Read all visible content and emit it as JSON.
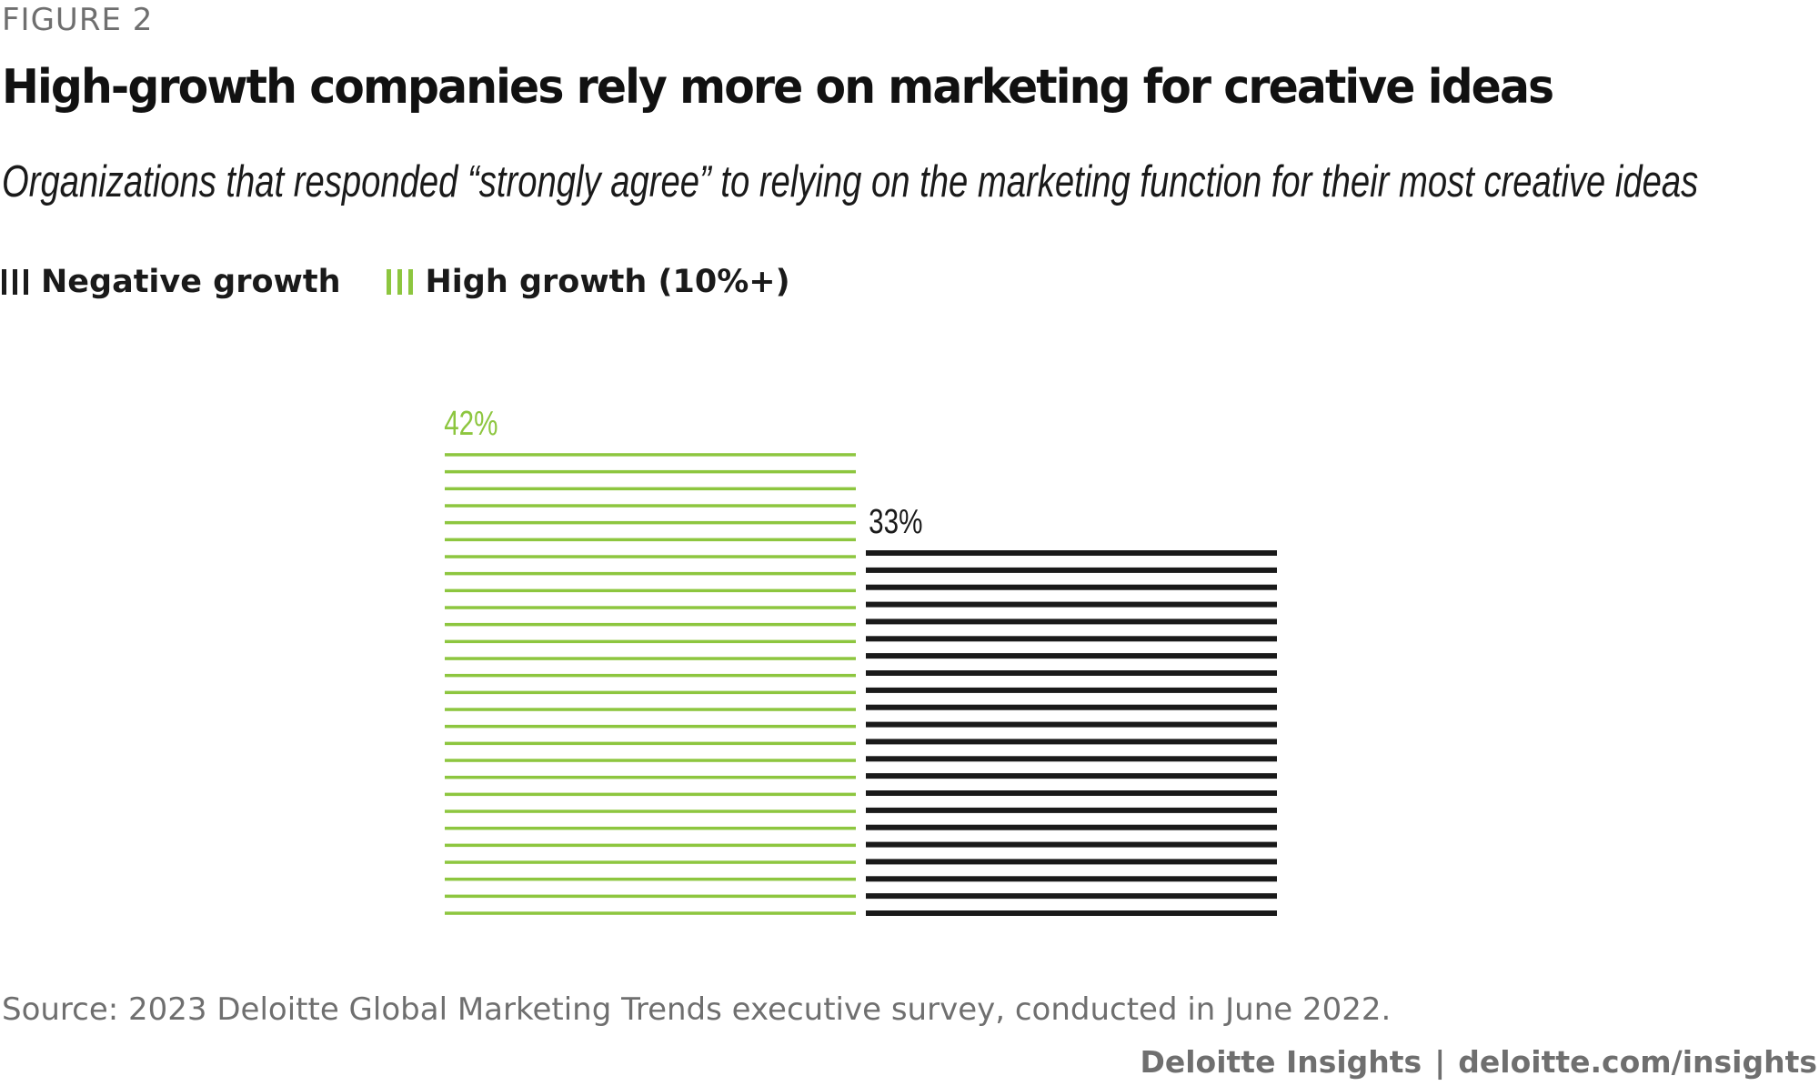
{
  "header": {
    "figure_label": "FIGURE 2",
    "title": "High-growth companies rely more on marketing for creative ideas",
    "subtitle": "Organizations that responded “strongly agree” to relying on the marketing function for their most creative ideas"
  },
  "legend": {
    "items": [
      {
        "label": "Negative growth",
        "color": "#1a1a1a"
      },
      {
        "label": "High growth (10%+)",
        "color": "#8dc63f"
      }
    ]
  },
  "chart_data": {
    "type": "bar",
    "categories": [
      "High growth (10%+)",
      "Negative growth"
    ],
    "values": [
      42,
      33
    ],
    "data_labels": [
      "42%",
      "33%"
    ],
    "colors": [
      "#8dc63f",
      "#1a1a1a"
    ],
    "grid": false,
    "legend_position": "top-left"
  },
  "footer": {
    "source": "Source: 2023 Deloitte Global Marketing Trends executive survey, conducted in June 2022.",
    "brand": "Deloitte Insights",
    "separator": "|",
    "url": "deloitte.com/insights"
  }
}
